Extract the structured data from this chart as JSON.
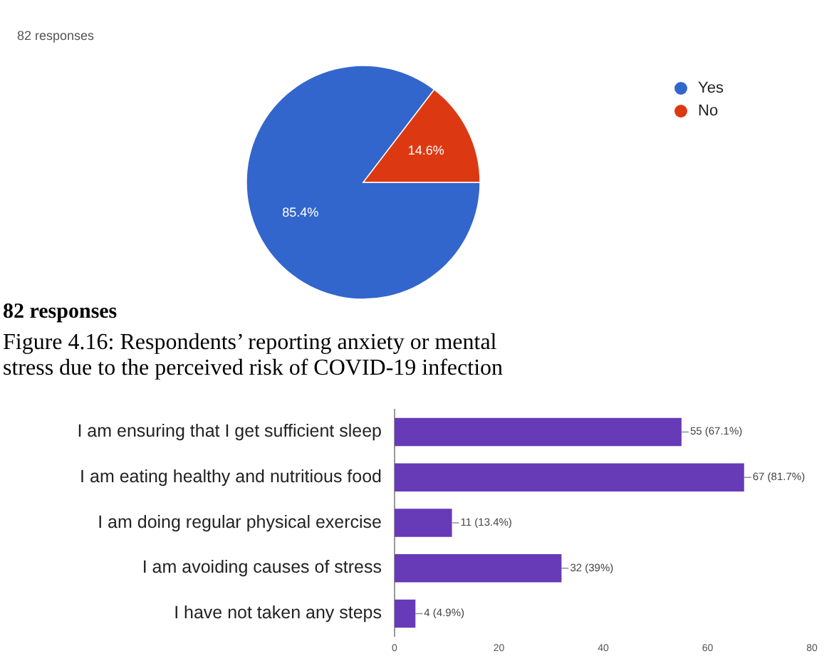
{
  "chart_data": [
    {
      "type": "pie",
      "title": "82 responses",
      "categories": [
        "Yes",
        "No"
      ],
      "values": [
        85.4,
        14.6
      ],
      "colors": [
        "#3366cc",
        "#dc3912"
      ],
      "value_labels": [
        "85.4%",
        "14.6%"
      ],
      "legend": "top right"
    },
    {
      "type": "bar",
      "orientation": "horizontal",
      "subtitle": "82 responses",
      "title": "Figure 4.16: Respondents’ reporting anxiety or mental stress due to the perceived risk of COVID-19 infection",
      "categories": [
        "I am ensuring that I get sufficient sleep",
        "I am eating healthy and nutritious food",
        "I am doing regular physical exercise",
        "I am avoiding causes of stress",
        "I have not taken any steps"
      ],
      "series": [
        {
          "color": "#673ab7",
          "values": [
            55,
            67,
            11,
            32,
            4
          ],
          "value_labels": [
            "55 (67.1%)",
            "67 (81.7%)",
            "11 (13.4%)",
            "32 (39%)",
            "4 (4.9%)"
          ]
        }
      ],
      "xlim": [
        0,
        80
      ],
      "xticks": [
        0,
        20,
        40,
        60,
        80
      ],
      "grid": false
    }
  ]
}
